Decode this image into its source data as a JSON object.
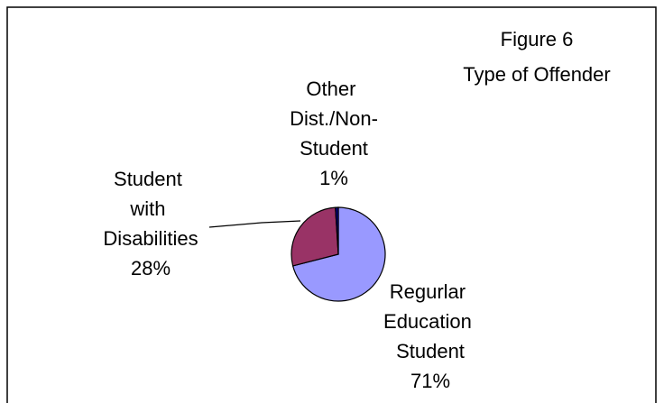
{
  "chart_data": {
    "type": "pie",
    "title": "Figure 6",
    "subtitle": "Type of Offender",
    "categories": [
      "Regurlar Education Student",
      "Student with Disabilities",
      "Other Dist./Non-Student"
    ],
    "values": [
      71,
      28,
      1
    ],
    "value_labels": [
      "71%",
      "28%",
      "1%"
    ],
    "colors": [
      "#9999ff",
      "#993366",
      "#000080"
    ]
  }
}
